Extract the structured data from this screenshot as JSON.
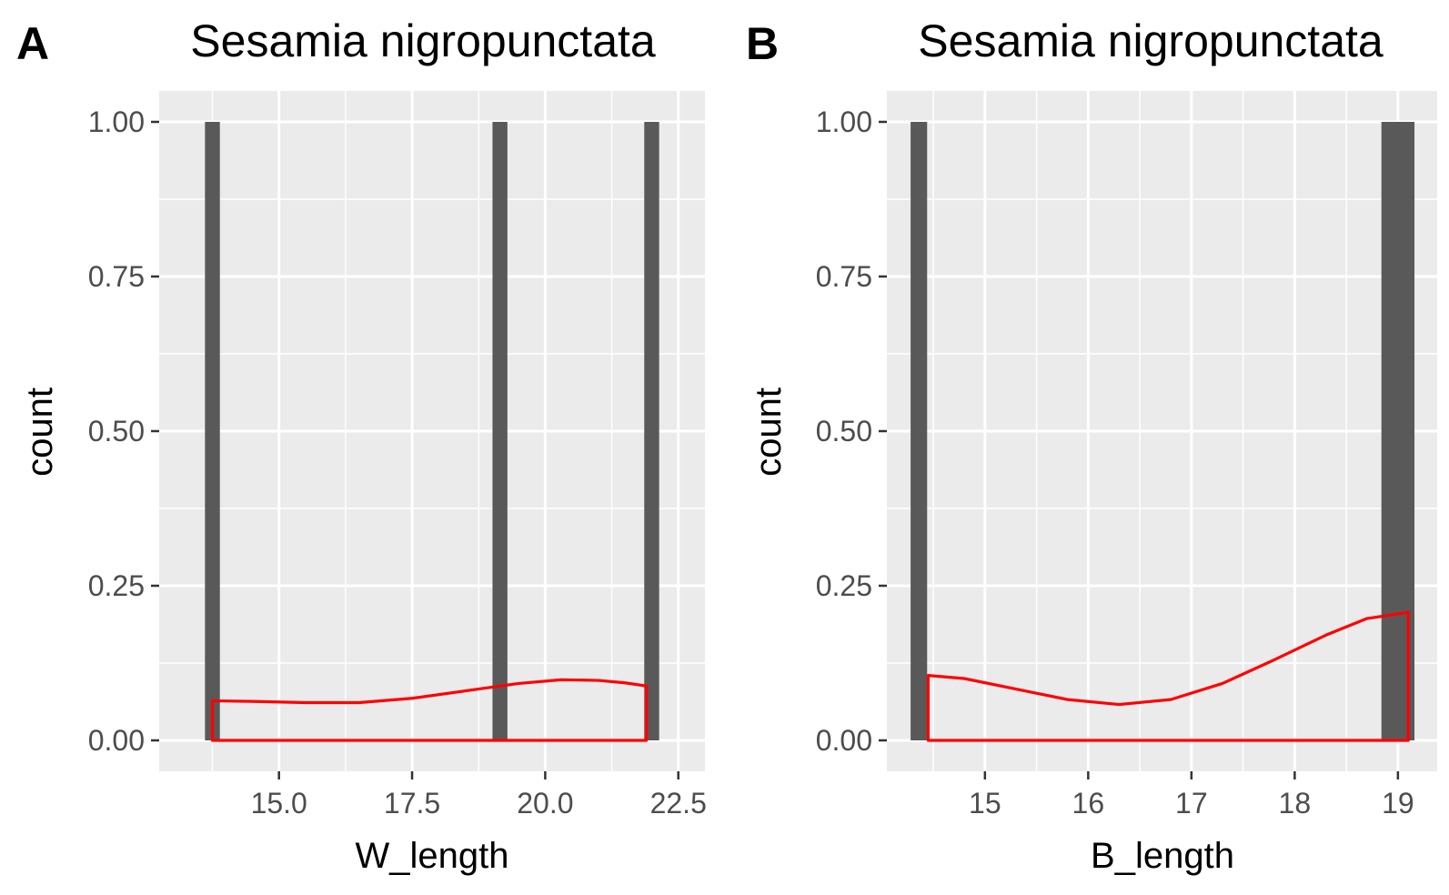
{
  "panels": [
    {
      "tag": "A",
      "chart_data": {
        "type": "bar",
        "subtype": "histogram with density outline",
        "title": "Sesamia nigropunctata",
        "xlabel": "W_length",
        "ylabel": "count",
        "xlim": [
          12.75,
          23.0
        ],
        "ylim": [
          -0.05,
          1.05
        ],
        "x_ticks": [
          15.0,
          17.5,
          20.0,
          22.5
        ],
        "x_tick_labels": [
          "15.0",
          "17.5",
          "20.0",
          "22.5"
        ],
        "y_ticks": [
          0,
          0.25,
          0.5,
          0.75,
          1.0
        ],
        "y_tick_labels": [
          "0.00",
          "0.25",
          "0.50",
          "0.75",
          "1.00"
        ],
        "bars": [
          {
            "x": 13.75,
            "width": 0.28,
            "count": 1
          },
          {
            "x": 19.15,
            "width": 0.28,
            "count": 1
          },
          {
            "x": 22.0,
            "width": 0.28,
            "count": 1
          }
        ],
        "density": {
          "color": "#ff0000",
          "x": [
            13.75,
            14.5,
            15.5,
            16.5,
            17.5,
            18.5,
            19.5,
            20.3,
            21.0,
            21.5,
            21.9
          ],
          "y": [
            0.064,
            0.063,
            0.061,
            0.061,
            0.068,
            0.08,
            0.092,
            0.098,
            0.097,
            0.093,
            0.088
          ]
        },
        "grid": true,
        "bar_color": "#595959",
        "panel_background": "#ebebeb"
      }
    },
    {
      "tag": "B",
      "chart_data": {
        "type": "bar",
        "subtype": "histogram with density outline",
        "title": "Sesamia nigropunctata",
        "xlabel": "B_length",
        "ylabel": "count",
        "xlim": [
          14.05,
          19.38
        ],
        "ylim": [
          -0.05,
          1.05
        ],
        "x_ticks": [
          15,
          16,
          17,
          18,
          19
        ],
        "x_tick_labels": [
          "15",
          "16",
          "17",
          "18",
          "19"
        ],
        "y_ticks": [
          0,
          0.25,
          0.5,
          0.75,
          1.0
        ],
        "y_tick_labels": [
          "0.00",
          "0.25",
          "0.50",
          "0.75",
          "1.00"
        ],
        "bars": [
          {
            "x": 14.36,
            "width": 0.16,
            "count": 1
          },
          {
            "x": 19.0,
            "width": 0.32,
            "count": 1
          }
        ],
        "density": {
          "color": "#ff0000",
          "x": [
            14.45,
            14.8,
            15.3,
            15.8,
            16.3,
            16.8,
            17.3,
            17.8,
            18.3,
            18.7,
            19.1
          ],
          "y": [
            0.105,
            0.1,
            0.083,
            0.066,
            0.058,
            0.066,
            0.092,
            0.13,
            0.17,
            0.197,
            0.207
          ]
        },
        "grid": true,
        "bar_color": "#595959",
        "panel_background": "#ebebeb"
      }
    }
  ]
}
